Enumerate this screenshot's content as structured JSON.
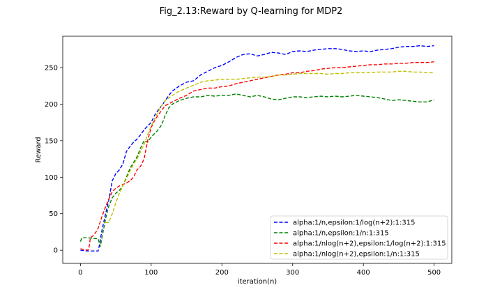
{
  "chart_data": {
    "type": "line",
    "title": "Fig_2.13:Reward by Q-learning for MDP2",
    "xlabel": "iteration(n)",
    "ylabel": "Reward",
    "xlim": [
      -25,
      525
    ],
    "ylim": [
      -18,
      293
    ],
    "x_ticks": [
      0,
      100,
      200,
      300,
      400,
      500
    ],
    "y_ticks": [
      0,
      50,
      100,
      150,
      200,
      250
    ],
    "grid": false,
    "legend_position": "lower-right",
    "line_style": "dashed",
    "series": [
      {
        "name": "alpha:1/n,epsilon:1/log(n+2):1:315",
        "color": "#0000ff",
        "points": [
          [
            0,
            0
          ],
          [
            10,
            -1
          ],
          [
            20,
            -1
          ],
          [
            25,
            -1
          ],
          [
            27,
            8
          ],
          [
            30,
            25
          ],
          [
            35,
            48
          ],
          [
            40,
            68
          ],
          [
            45,
            95
          ],
          [
            50,
            105
          ],
          [
            55,
            110
          ],
          [
            60,
            118
          ],
          [
            65,
            135
          ],
          [
            70,
            142
          ],
          [
            75,
            148
          ],
          [
            80,
            152
          ],
          [
            85,
            158
          ],
          [
            90,
            165
          ],
          [
            95,
            170
          ],
          [
            100,
            175
          ],
          [
            105,
            185
          ],
          [
            110,
            192
          ],
          [
            115,
            198
          ],
          [
            120,
            205
          ],
          [
            125,
            212
          ],
          [
            130,
            218
          ],
          [
            140,
            225
          ],
          [
            150,
            230
          ],
          [
            160,
            232
          ],
          [
            170,
            240
          ],
          [
            180,
            245
          ],
          [
            190,
            250
          ],
          [
            200,
            253
          ],
          [
            210,
            258
          ],
          [
            220,
            264
          ],
          [
            230,
            268
          ],
          [
            240,
            269
          ],
          [
            250,
            266
          ],
          [
            260,
            268
          ],
          [
            270,
            271
          ],
          [
            280,
            270
          ],
          [
            290,
            268
          ],
          [
            300,
            272
          ],
          [
            310,
            273
          ],
          [
            320,
            272
          ],
          [
            330,
            274
          ],
          [
            340,
            275
          ],
          [
            350,
            276
          ],
          [
            360,
            276
          ],
          [
            370,
            275
          ],
          [
            380,
            273
          ],
          [
            390,
            272
          ],
          [
            400,
            273
          ],
          [
            410,
            272
          ],
          [
            420,
            274
          ],
          [
            430,
            275
          ],
          [
            440,
            276
          ],
          [
            450,
            278
          ],
          [
            460,
            279
          ],
          [
            470,
            279
          ],
          [
            480,
            280
          ],
          [
            490,
            279
          ],
          [
            500,
            280
          ]
        ]
      },
      {
        "name": "alpha:1/n,epsilon:1/n:1:315",
        "color": "#008000",
        "points": [
          [
            0,
            12
          ],
          [
            2,
            17
          ],
          [
            10,
            17
          ],
          [
            20,
            16
          ],
          [
            25,
            16
          ],
          [
            28,
            5
          ],
          [
            32,
            25
          ],
          [
            36,
            45
          ],
          [
            40,
            60
          ],
          [
            45,
            72
          ],
          [
            50,
            78
          ],
          [
            55,
            82
          ],
          [
            60,
            88
          ],
          [
            65,
            100
          ],
          [
            70,
            112
          ],
          [
            75,
            120
          ],
          [
            80,
            128
          ],
          [
            85,
            140
          ],
          [
            90,
            150
          ],
          [
            95,
            148
          ],
          [
            100,
            155
          ],
          [
            105,
            160
          ],
          [
            110,
            165
          ],
          [
            115,
            172
          ],
          [
            120,
            185
          ],
          [
            125,
            195
          ],
          [
            130,
            200
          ],
          [
            140,
            205
          ],
          [
            150,
            208
          ],
          [
            160,
            210
          ],
          [
            170,
            210
          ],
          [
            180,
            212
          ],
          [
            190,
            211
          ],
          [
            200,
            212
          ],
          [
            210,
            212
          ],
          [
            220,
            214
          ],
          [
            230,
            212
          ],
          [
            240,
            210
          ],
          [
            250,
            212
          ],
          [
            260,
            210
          ],
          [
            270,
            207
          ],
          [
            280,
            206
          ],
          [
            290,
            208
          ],
          [
            300,
            210
          ],
          [
            310,
            210
          ],
          [
            320,
            209
          ],
          [
            330,
            210
          ],
          [
            340,
            211
          ],
          [
            350,
            210
          ],
          [
            360,
            211
          ],
          [
            370,
            210
          ],
          [
            380,
            211
          ],
          [
            390,
            212
          ],
          [
            400,
            211
          ],
          [
            410,
            210
          ],
          [
            420,
            209
          ],
          [
            430,
            207
          ],
          [
            440,
            205
          ],
          [
            450,
            206
          ],
          [
            460,
            205
          ],
          [
            470,
            204
          ],
          [
            480,
            203
          ],
          [
            490,
            203
          ],
          [
            500,
            206
          ]
        ]
      },
      {
        "name": "alpha:1/nlog(n+2),epsilon:1/log(n+2):1:315",
        "color": "#ff0000",
        "points": [
          [
            0,
            2
          ],
          [
            5,
            1
          ],
          [
            10,
            0
          ],
          [
            12,
            2
          ],
          [
            14,
            17
          ],
          [
            18,
            20
          ],
          [
            22,
            25
          ],
          [
            25,
            30
          ],
          [
            30,
            45
          ],
          [
            35,
            58
          ],
          [
            40,
            70
          ],
          [
            45,
            80
          ],
          [
            50,
            85
          ],
          [
            55,
            88
          ],
          [
            60,
            90
          ],
          [
            65,
            92
          ],
          [
            70,
            95
          ],
          [
            75,
            100
          ],
          [
            80,
            110
          ],
          [
            85,
            115
          ],
          [
            90,
            125
          ],
          [
            95,
            150
          ],
          [
            100,
            168
          ],
          [
            105,
            178
          ],
          [
            110,
            185
          ],
          [
            115,
            192
          ],
          [
            120,
            198
          ],
          [
            130,
            203
          ],
          [
            140,
            208
          ],
          [
            150,
            212
          ],
          [
            160,
            218
          ],
          [
            170,
            220
          ],
          [
            180,
            222
          ],
          [
            190,
            222
          ],
          [
            200,
            224
          ],
          [
            210,
            225
          ],
          [
            220,
            228
          ],
          [
            230,
            230
          ],
          [
            240,
            232
          ],
          [
            250,
            234
          ],
          [
            260,
            236
          ],
          [
            270,
            238
          ],
          [
            280,
            240
          ],
          [
            290,
            241
          ],
          [
            300,
            243
          ],
          [
            310,
            243
          ],
          [
            320,
            245
          ],
          [
            330,
            246
          ],
          [
            340,
            248
          ],
          [
            350,
            249
          ],
          [
            360,
            250
          ],
          [
            370,
            250
          ],
          [
            380,
            251
          ],
          [
            390,
            252
          ],
          [
            400,
            253
          ],
          [
            410,
            254
          ],
          [
            420,
            254
          ],
          [
            430,
            255
          ],
          [
            440,
            255
          ],
          [
            450,
            256
          ],
          [
            460,
            256
          ],
          [
            470,
            257
          ],
          [
            480,
            257
          ],
          [
            490,
            257
          ],
          [
            500,
            258
          ]
        ]
      },
      {
        "name": "alpha:1/nlog(n+2),epsilon:1/n:1:315",
        "color": "#bfbf00",
        "points": [
          [
            35,
            38
          ],
          [
            40,
            38
          ],
          [
            45,
            50
          ],
          [
            50,
            65
          ],
          [
            55,
            78
          ],
          [
            60,
            88
          ],
          [
            65,
            98
          ],
          [
            70,
            108
          ],
          [
            75,
            118
          ],
          [
            80,
            125
          ],
          [
            85,
            135
          ],
          [
            90,
            145
          ],
          [
            95,
            158
          ],
          [
            100,
            170
          ],
          [
            105,
            180
          ],
          [
            110,
            190
          ],
          [
            115,
            198
          ],
          [
            120,
            205
          ],
          [
            130,
            212
          ],
          [
            140,
            218
          ],
          [
            150,
            222
          ],
          [
            160,
            226
          ],
          [
            170,
            230
          ],
          [
            180,
            232
          ],
          [
            190,
            233
          ],
          [
            200,
            234
          ],
          [
            210,
            234
          ],
          [
            220,
            234
          ],
          [
            230,
            235
          ],
          [
            240,
            236
          ],
          [
            250,
            237
          ],
          [
            260,
            237
          ],
          [
            270,
            238
          ],
          [
            280,
            240
          ],
          [
            290,
            240
          ],
          [
            300,
            241
          ],
          [
            310,
            242
          ],
          [
            320,
            242
          ],
          [
            330,
            242
          ],
          [
            340,
            242
          ],
          [
            350,
            241
          ],
          [
            360,
            242
          ],
          [
            370,
            242
          ],
          [
            380,
            243
          ],
          [
            390,
            243
          ],
          [
            400,
            243
          ],
          [
            410,
            243
          ],
          [
            420,
            244
          ],
          [
            430,
            244
          ],
          [
            440,
            244
          ],
          [
            450,
            245
          ],
          [
            460,
            245
          ],
          [
            470,
            244
          ],
          [
            480,
            244
          ],
          [
            490,
            243
          ],
          [
            500,
            243
          ]
        ]
      }
    ]
  }
}
